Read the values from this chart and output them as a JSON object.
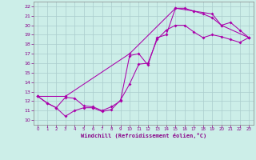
{
  "title": "",
  "xlabel": "Windchill (Refroidissement éolien,°C)",
  "ylabel": "",
  "xlim": [
    -0.5,
    23.5
  ],
  "ylim": [
    9.5,
    22.5
  ],
  "xticks": [
    0,
    1,
    2,
    3,
    4,
    5,
    6,
    7,
    8,
    9,
    10,
    11,
    12,
    13,
    14,
    15,
    16,
    17,
    18,
    19,
    20,
    21,
    22,
    23
  ],
  "yticks": [
    10,
    11,
    12,
    13,
    14,
    15,
    16,
    17,
    18,
    19,
    20,
    21,
    22
  ],
  "bg_color": "#cceee8",
  "grid_color": "#aacccc",
  "line_color": "#aa00aa",
  "line1_x": [
    0,
    1,
    2,
    3,
    4,
    5,
    6,
    7,
    8,
    9,
    10,
    11,
    12,
    13,
    14,
    15,
    16,
    17,
    18,
    19,
    20,
    21,
    22,
    23
  ],
  "line1_y": [
    12.5,
    11.8,
    11.3,
    10.4,
    11.0,
    11.3,
    11.3,
    10.9,
    11.1,
    12.1,
    13.8,
    15.9,
    16.0,
    18.5,
    19.5,
    20.0,
    20.0,
    19.3,
    18.7,
    19.0,
    18.8,
    18.5,
    18.2,
    18.7
  ],
  "line2_x": [
    0,
    1,
    2,
    3,
    4,
    5,
    6,
    7,
    8,
    9,
    10,
    11,
    12,
    13,
    14,
    15,
    16,
    17,
    18,
    19,
    20,
    21,
    22,
    23
  ],
  "line2_y": [
    12.5,
    11.8,
    11.3,
    12.4,
    12.3,
    11.5,
    11.4,
    11.0,
    11.4,
    12.0,
    16.8,
    17.0,
    15.8,
    18.7,
    19.0,
    21.8,
    21.8,
    21.5,
    21.2,
    20.8,
    20.0,
    20.3,
    19.5,
    18.7
  ],
  "line3_x": [
    0,
    3,
    10,
    15,
    17,
    19,
    20,
    23
  ],
  "line3_y": [
    12.5,
    12.5,
    17.0,
    21.8,
    21.5,
    21.2,
    20.0,
    18.7
  ]
}
